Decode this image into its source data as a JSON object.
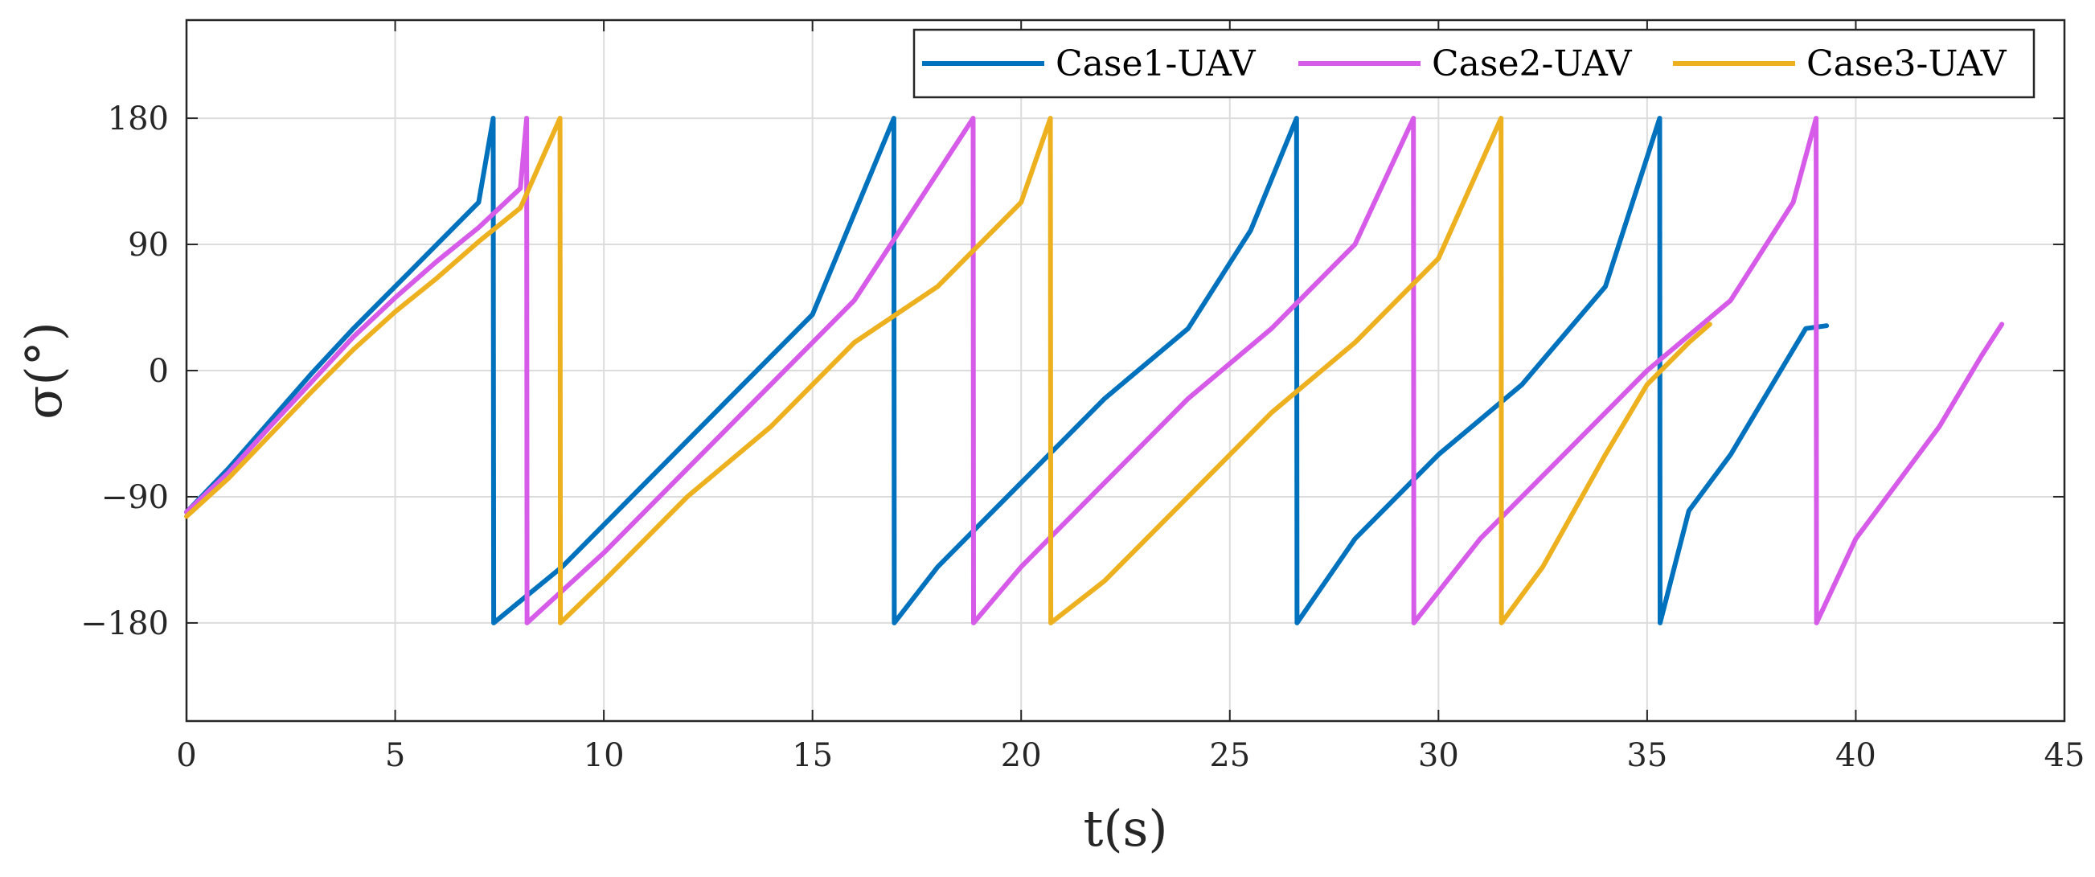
{
  "chart_data": {
    "type": "line",
    "title": "",
    "xlabel": "t(s)",
    "ylabel": "σ(°)",
    "xlim": [
      0,
      45
    ],
    "ylim": [
      -250,
      250
    ],
    "xticks": [
      0,
      5,
      10,
      15,
      20,
      25,
      30,
      35,
      40,
      45
    ],
    "yticks": [
      -180,
      -90,
      0,
      90,
      180
    ],
    "ytick_labels": [
      "−180",
      "−90",
      "0",
      "90",
      "180"
    ],
    "grid": true,
    "legend_position": "top-right",
    "series": [
      {
        "name": "Case1-UAV",
        "color": "#0072BD",
        "points": [
          [
            0,
            -101
          ],
          [
            1,
            -70
          ],
          [
            2,
            -36
          ],
          [
            3,
            -2
          ],
          [
            4,
            30
          ],
          [
            5,
            60
          ],
          [
            6,
            90
          ],
          [
            7,
            120
          ],
          [
            7.35,
            180
          ],
          [
            7.36,
            -180
          ],
          [
            9,
            -140
          ],
          [
            11,
            -80
          ],
          [
            13,
            -20
          ],
          [
            15,
            40
          ],
          [
            16.95,
            180
          ],
          [
            16.96,
            -180
          ],
          [
            18,
            -140
          ],
          [
            20,
            -80
          ],
          [
            22,
            -20
          ],
          [
            24,
            30
          ],
          [
            25.5,
            100
          ],
          [
            26.6,
            180
          ],
          [
            26.61,
            -180
          ],
          [
            28,
            -120
          ],
          [
            30,
            -60
          ],
          [
            32,
            -10
          ],
          [
            34,
            60
          ],
          [
            35.3,
            180
          ],
          [
            35.31,
            -180
          ],
          [
            36,
            -100
          ],
          [
            37,
            -60
          ],
          [
            38,
            -10
          ],
          [
            38.8,
            30
          ],
          [
            39.3,
            32
          ]
        ]
      },
      {
        "name": "Case2-UAV",
        "color": "#D65BE8",
        "points": [
          [
            0,
            -101
          ],
          [
            1,
            -73
          ],
          [
            2,
            -40
          ],
          [
            3,
            -8
          ],
          [
            4,
            24
          ],
          [
            5,
            52
          ],
          [
            6,
            78
          ],
          [
            7,
            102
          ],
          [
            8,
            130
          ],
          [
            8.15,
            180
          ],
          [
            8.16,
            -180
          ],
          [
            10,
            -130
          ],
          [
            12,
            -70
          ],
          [
            14,
            -10
          ],
          [
            16,
            50
          ],
          [
            18.85,
            180
          ],
          [
            18.86,
            -180
          ],
          [
            20,
            -140
          ],
          [
            22,
            -80
          ],
          [
            24,
            -20
          ],
          [
            26,
            30
          ],
          [
            28,
            90
          ],
          [
            29.4,
            180
          ],
          [
            29.41,
            -180
          ],
          [
            31,
            -120
          ],
          [
            33,
            -60
          ],
          [
            35,
            0
          ],
          [
            37,
            50
          ],
          [
            38.5,
            120
          ],
          [
            39.05,
            180
          ],
          [
            39.06,
            -180
          ],
          [
            40,
            -120
          ],
          [
            41,
            -80
          ],
          [
            42,
            -40
          ],
          [
            43,
            10
          ],
          [
            43.5,
            33
          ]
        ]
      },
      {
        "name": "Case3-UAV",
        "color": "#EDB120",
        "points": [
          [
            0,
            -104
          ],
          [
            1,
            -77
          ],
          [
            2,
            -46
          ],
          [
            3,
            -15
          ],
          [
            4,
            15
          ],
          [
            5,
            42
          ],
          [
            6,
            66
          ],
          [
            7,
            92
          ],
          [
            8,
            116
          ],
          [
            8.95,
            180
          ],
          [
            8.96,
            -180
          ],
          [
            10,
            -150
          ],
          [
            12,
            -90
          ],
          [
            14,
            -40
          ],
          [
            16,
            20
          ],
          [
            18,
            60
          ],
          [
            20,
            120
          ],
          [
            20.7,
            180
          ],
          [
            20.71,
            -180
          ],
          [
            22,
            -150
          ],
          [
            24,
            -90
          ],
          [
            26,
            -30
          ],
          [
            28,
            20
          ],
          [
            30,
            80
          ],
          [
            31.5,
            180
          ],
          [
            31.51,
            -180
          ],
          [
            32.5,
            -140
          ],
          [
            34,
            -60
          ],
          [
            35,
            -10
          ],
          [
            36,
            20
          ],
          [
            36.5,
            33
          ]
        ]
      }
    ]
  }
}
